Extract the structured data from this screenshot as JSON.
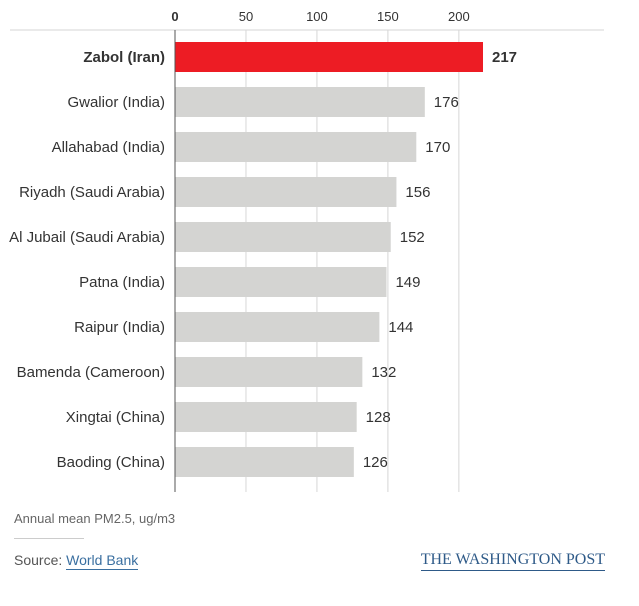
{
  "chart_data": {
    "type": "bar",
    "orientation": "horizontal",
    "categories": [
      "Zabol (Iran)",
      "Gwalior (India)",
      "Allahabad (India)",
      "Riyadh (Saudi Arabia)",
      "Al Jubail (Saudi Arabia)",
      "Patna (India)",
      "Raipur (India)",
      "Bamenda (Cameroon)",
      "Xingtai (China)",
      "Baoding (China)"
    ],
    "values": [
      217,
      176,
      170,
      156,
      152,
      149,
      144,
      132,
      128,
      126
    ],
    "highlight_index": 0,
    "xlim": [
      0,
      217
    ],
    "xticks": [
      0,
      50,
      100,
      150,
      200
    ],
    "xlabel": "Annual mean PM2.5, ug/m3",
    "axis_position": "top",
    "grid": true,
    "colors": {
      "highlight": "#ed1c24",
      "bar": "#d4d4d2",
      "grid": "#d6d6d6",
      "text": "#333333"
    }
  },
  "footer": {
    "source_prefix": "Source:",
    "source_name": "World Bank",
    "brand": "THE WASHINGTON POST"
  }
}
